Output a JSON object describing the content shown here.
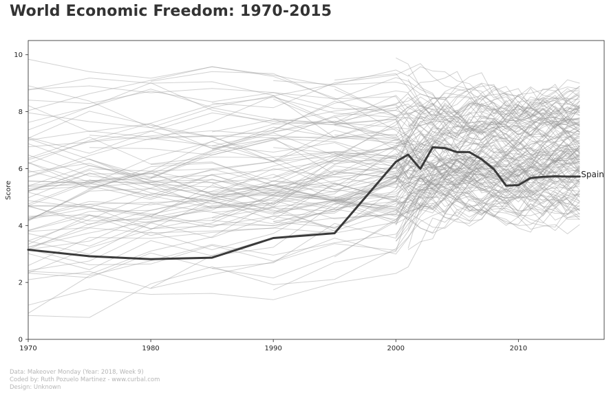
{
  "chart_data": {
    "type": "line",
    "title": "World Economic Freedom: 1970-2015",
    "xlabel": "",
    "ylabel": "Score",
    "xlim": [
      1970,
      2017
    ],
    "ylim": [
      0,
      10.5
    ],
    "x_ticks": [
      1970,
      1980,
      1990,
      2000,
      2010
    ],
    "y_ticks": [
      0,
      2,
      4,
      6,
      8,
      10
    ],
    "highlight": {
      "name": "Spain",
      "x": [
        1970,
        1975,
        1980,
        1985,
        1990,
        1995,
        2000,
        2001,
        2002,
        2003,
        2004,
        2005,
        2006,
        2007,
        2008,
        2009,
        2010,
        2011,
        2012,
        2013,
        2014,
        2015
      ],
      "y": [
        3.15,
        2.92,
        2.82,
        2.87,
        3.56,
        3.73,
        6.24,
        6.49,
        5.99,
        6.75,
        6.72,
        6.58,
        6.58,
        6.33,
        5.98,
        5.4,
        5.42,
        5.67,
        5.71,
        5.73,
        5.72,
        5.72
      ]
    },
    "background_series_note": "Grey lines: all other countries (approx. 150), 1970-2015"
  },
  "credits": {
    "line1": "Data: Makeover Monday (Year: 2018, Week 9)",
    "line2": "Coded by: Ruth Pozuelo Martinez - www.curbal.com",
    "line3": "Design: Unknown"
  },
  "colors": {
    "background_lines": "#9a9a9a",
    "highlight_line": "#3a3a3a",
    "title": "#333333",
    "credits": "#b5b5b5"
  }
}
